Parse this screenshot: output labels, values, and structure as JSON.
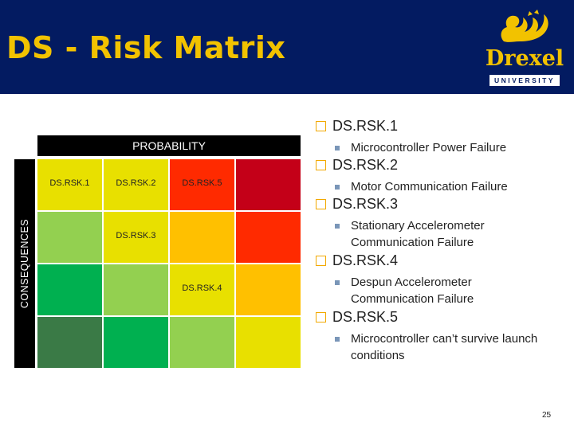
{
  "header": {
    "title": "DS - Risk Matrix",
    "logo": {
      "name": "Drexel",
      "sub": "UNIVERSITY"
    },
    "colors": {
      "background": "#031b61",
      "accent": "#f2c200"
    }
  },
  "matrix": {
    "probability_label": "PROBABILITY",
    "consequences_label": "CONSEQUENCES",
    "rows": [
      [
        {
          "color": "#e8e000",
          "label": "DS.RSK.1"
        },
        {
          "color": "#e8e000",
          "label": "DS.RSK.2"
        },
        {
          "color": "#ff2a00",
          "label": "DS.RSK.5"
        },
        {
          "color": "#c40018",
          "label": ""
        }
      ],
      [
        {
          "color": "#93d050",
          "label": ""
        },
        {
          "color": "#e8e000",
          "label": "DS.RSK.3"
        },
        {
          "color": "#ffc000",
          "label": ""
        },
        {
          "color": "#ff2a00",
          "label": ""
        }
      ],
      [
        {
          "color": "#00b050",
          "label": ""
        },
        {
          "color": "#93d050",
          "label": ""
        },
        {
          "color": "#e8e000",
          "label": "DS.RSK.4"
        },
        {
          "color": "#ffc000",
          "label": ""
        }
      ],
      [
        {
          "color": "#3a7a46",
          "label": ""
        },
        {
          "color": "#00b050",
          "label": ""
        },
        {
          "color": "#93d050",
          "label": ""
        },
        {
          "color": "#e8e000",
          "label": ""
        }
      ]
    ]
  },
  "risks": [
    {
      "id": "DS.RSK.1",
      "desc": "Microcontroller Power Failure"
    },
    {
      "id": "DS.RSK.2",
      "desc": "Motor Communication Failure"
    },
    {
      "id": "DS.RSK.3",
      "desc": "Stationary Accelerometer Communication Failure"
    },
    {
      "id": "DS.RSK.4",
      "desc": "Despun Accelerometer Communication Failure"
    },
    {
      "id": "DS.RSK.5",
      "desc": "Microcontroller can’t survive launch conditions"
    }
  ],
  "page_number": "25"
}
